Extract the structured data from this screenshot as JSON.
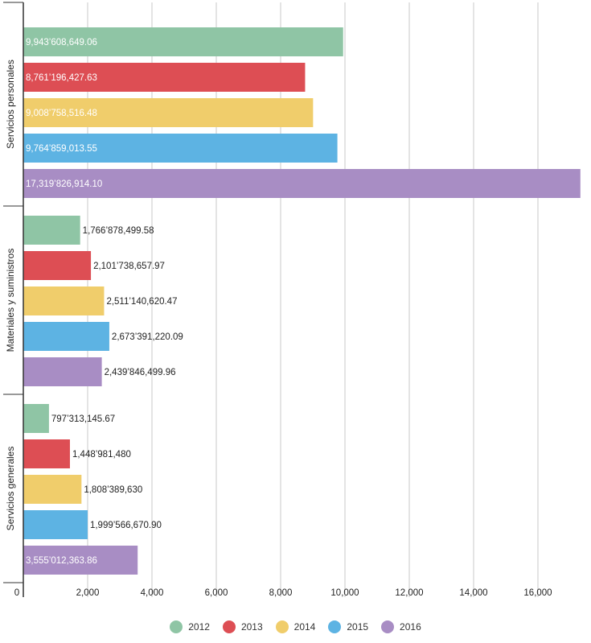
{
  "chart_data": {
    "type": "bar",
    "orientation": "horizontal",
    "categories": [
      "Servicios personales",
      "Materiales y suministros",
      "Servicios generales"
    ],
    "series": [
      {
        "name": "2012",
        "color": "#8fc5a5",
        "values": [
          9943.61,
          1766.88,
          797.31
        ],
        "labels": [
          "9,943’608,649.06",
          "1,766’878,499.58",
          "797’313,145.67"
        ]
      },
      {
        "name": "2013",
        "color": "#dd4e54",
        "values": [
          8761.2,
          2101.74,
          1448.98
        ],
        "labels": [
          "8,761’196,427.63",
          "2,101’738,657.97",
          "1,448’981,480"
        ]
      },
      {
        "name": "2014",
        "color": "#f0cd6b",
        "values": [
          9008.76,
          2511.14,
          1808.39
        ],
        "labels": [
          "9,008’758,516.48",
          "2,511’140,620.47",
          "1,808’389,630"
        ]
      },
      {
        "name": "2015",
        "color": "#5db3e3",
        "values": [
          9764.86,
          2673.39,
          1999.57
        ],
        "labels": [
          "9,764’859,013.55",
          "2,673’391,220.09",
          "1,999’566,670.90"
        ]
      },
      {
        "name": "2016",
        "color": "#a88dc4",
        "values": [
          17319.83,
          2439.85,
          3555.01
        ],
        "labels": [
          "17,319’826,914.10",
          "2,439’846,499.96",
          "3,555’012,363.86"
        ]
      }
    ],
    "x_ticks": [
      "0",
      "2,000",
      "4,000",
      "6,000",
      "8,000",
      "10,000",
      "12,000",
      "14,000",
      "16,000"
    ],
    "x_tick_values": [
      0,
      2000,
      4000,
      6000,
      8000,
      10000,
      12000,
      14000,
      16000
    ],
    "xlim": [
      0,
      17400
    ],
    "grid": true,
    "legend_position": "bottom-center",
    "title": "",
    "xlabel": "",
    "ylabel": ""
  }
}
